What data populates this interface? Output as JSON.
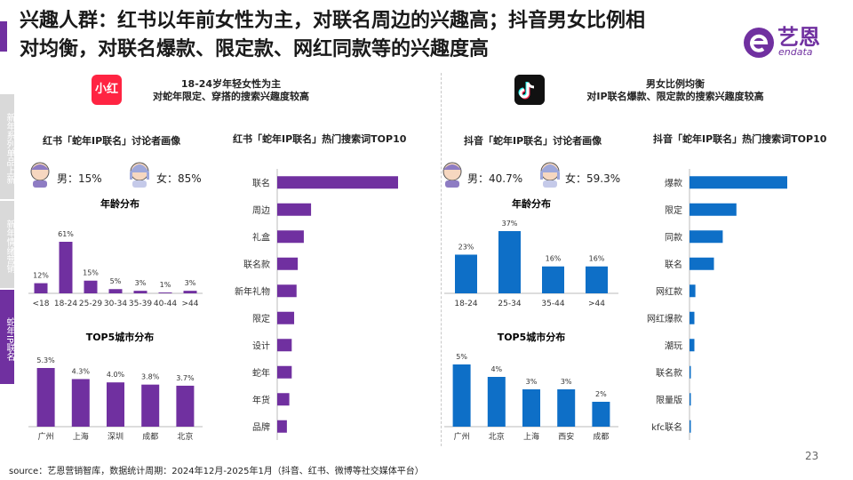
{
  "header": {
    "title_line1": "兴趣人群：红书以年前女性为主，对联名周边的兴趣高；抖音男女比例相",
    "title_line2": "对均衡，对联名爆款、限定款、网红同款等的兴趣度高",
    "logo_text": "艺恩",
    "logo_sub": "endata"
  },
  "sidenav": {
    "items": [
      {
        "label": "新年系列单品上新",
        "active": false
      },
      {
        "label": "新年情绪营销",
        "active": false
      },
      {
        "label": "蛇年IP联名",
        "active": true
      }
    ]
  },
  "left": {
    "brand_label": "小红书",
    "headline_1": "18-24岁年轻女性为主",
    "headline_2": "对蛇年限定、穿搭的搜索兴趣度较高",
    "profile_title": "红书「蛇年IP联名」讨论者画像",
    "male": "男：15%",
    "female": "女：85%",
    "keyword_title": "红书「蛇年IP联名」热门搜索词TOP10"
  },
  "right": {
    "headline_1": "男女比例均衡",
    "headline_2": "对IP联名爆款、限定款的搜索兴趣度较高",
    "profile_title": "抖音「蛇年IP联名」讨论者画像",
    "male": "男：40.7%",
    "female": "女：59.3%",
    "keyword_title": "抖音「蛇年IP联名」热门搜索词TOP10"
  },
  "colors": {
    "purple": "#7030a0",
    "blue": "#0e6fc7"
  },
  "footer": {
    "source": "source：艺恩营销智库，数据统计周期：2024年12月-2025年1月（抖音、红书、微博等社交媒体平台）",
    "page": "23"
  },
  "chart_data": [
    {
      "id": "xhs-age",
      "type": "bar",
      "title": "年龄分布",
      "categories": [
        "<18",
        "18-24",
        "25-29",
        "30-34",
        "35-39",
        "40-44",
        ">44"
      ],
      "values": [
        12,
        61,
        15,
        5,
        3,
        1,
        3
      ],
      "labels": [
        "12%",
        "61%",
        "15%",
        "5%",
        "3%",
        "1%",
        "3%"
      ]
    },
    {
      "id": "xhs-city",
      "type": "bar",
      "title": "TOP5城市分布",
      "categories": [
        "广州",
        "上海",
        "深圳",
        "成都",
        "北京"
      ],
      "values": [
        5.3,
        4.3,
        4.0,
        3.8,
        3.7
      ],
      "labels": [
        "5.3%",
        "4.3%",
        "4.0%",
        "3.8%",
        "3.7%"
      ]
    },
    {
      "id": "xhs-keywords",
      "type": "bar",
      "orientation": "horizontal",
      "categories": [
        "联名",
        "周边",
        "礼盒",
        "联名款",
        "新年礼物",
        "限定",
        "设计",
        "蛇年",
        "年货",
        "品牌"
      ],
      "values": [
        100,
        28,
        22,
        17,
        16,
        14,
        12,
        12,
        10,
        8
      ]
    },
    {
      "id": "dy-age",
      "type": "bar",
      "title": "年龄分布",
      "categories": [
        "18-24",
        "25-34",
        "35-44",
        ">44"
      ],
      "values": [
        23,
        37,
        16,
        16
      ],
      "labels": [
        "23%",
        "37%",
        "16%",
        "16%"
      ]
    },
    {
      "id": "dy-city",
      "type": "bar",
      "title": "TOP5城市分布",
      "categories": [
        "广州",
        "北京",
        "上海",
        "西安",
        "成都"
      ],
      "values": [
        5,
        4,
        3,
        3,
        2
      ],
      "labels": [
        "5%",
        "4%",
        "3%",
        "3%",
        "2%"
      ]
    },
    {
      "id": "dy-keywords",
      "type": "bar",
      "orientation": "horizontal",
      "categories": [
        "爆款",
        "限定",
        "同款",
        "联名",
        "网红款",
        "网红爆款",
        "潮玩",
        "联名款",
        "限量版",
        "kfc联名"
      ],
      "values": [
        100,
        48,
        34,
        25,
        6,
        5,
        5,
        1,
        1,
        1
      ]
    }
  ]
}
